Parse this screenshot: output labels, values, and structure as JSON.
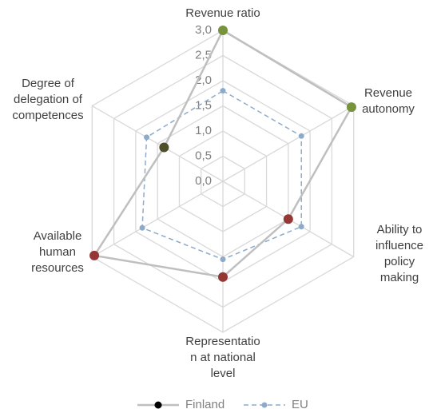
{
  "chart_data": {
    "type": "radar",
    "categories": [
      "Revenue ratio",
      "Revenue\nautonomy",
      "Ability to\ninfluence\npolicy making",
      "Representatio\nn at national\nlevel",
      "Available\nhuman\nresources",
      "Degree of\ndelegation of\ncompetences"
    ],
    "rlim": [
      0,
      3
    ],
    "rticks": [
      {
        "value": 0,
        "label": "0,0"
      },
      {
        "value": 0.5,
        "label": "0,5"
      },
      {
        "value": 1,
        "label": "1,0"
      },
      {
        "value": 1.5,
        "label": "1,5"
      },
      {
        "value": 2,
        "label": "2,0"
      },
      {
        "value": 2.5,
        "label": "2,5"
      },
      {
        "value": 3,
        "label": "3,0"
      }
    ],
    "grid": true,
    "legend": "bottom",
    "series": [
      {
        "name": "Finland",
        "color": "#bfbfbf",
        "marker_color": "#000000",
        "dashed": false,
        "point_colors": [
          "#77933c",
          "#77933c",
          "#953735",
          "#953735",
          "#953735",
          "#4f4f2b"
        ],
        "values": [
          3.0,
          2.95,
          1.5,
          1.9,
          2.95,
          1.35
        ]
      },
      {
        "name": "EU",
        "color": "#8eaacb",
        "marker_color": "#8eaacb",
        "dashed": true,
        "values": [
          1.8,
          1.8,
          1.8,
          1.55,
          1.85,
          1.75
        ]
      }
    ]
  }
}
